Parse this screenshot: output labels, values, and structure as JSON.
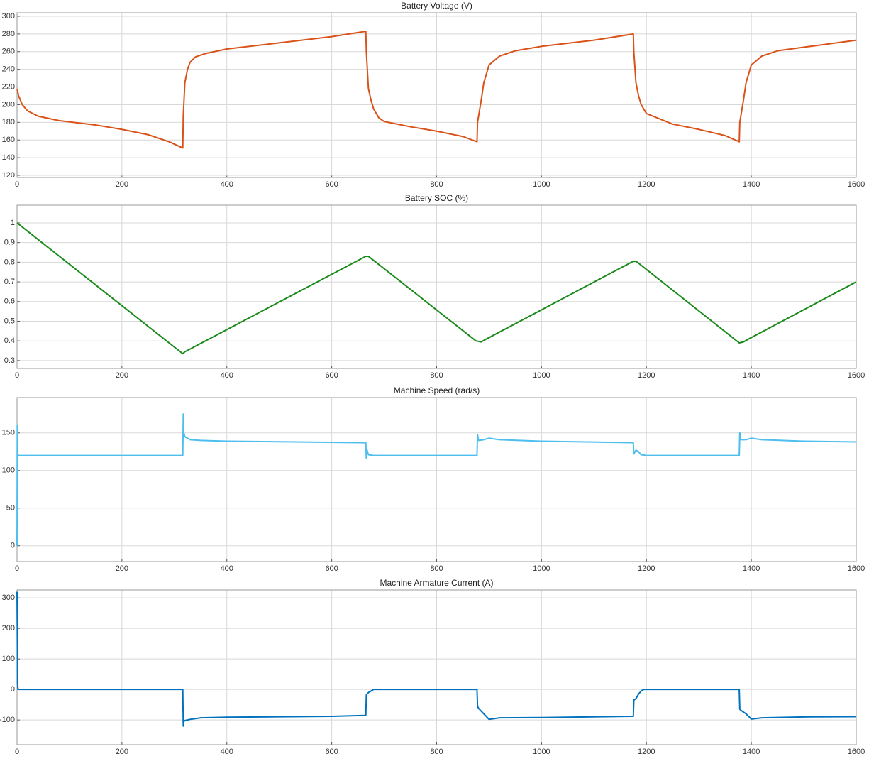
{
  "chart_data": [
    {
      "type": "line",
      "title": "Battery Voltage (V)",
      "grid": true,
      "xlim": [
        0,
        1600
      ],
      "xticks": [
        0,
        200,
        400,
        600,
        800,
        1000,
        1200,
        1400,
        1600
      ],
      "ylim": [
        117.6,
        304
      ],
      "yticks": [
        120,
        140,
        160,
        180,
        200,
        220,
        240,
        260,
        280,
        300
      ],
      "x": [
        0,
        3,
        10,
        20,
        40,
        80,
        150,
        200,
        250,
        290,
        316,
        317,
        320,
        325,
        330,
        340,
        360,
        400,
        500,
        600,
        665,
        666,
        670,
        675,
        680,
        690,
        700,
        750,
        800,
        850,
        877,
        878,
        885,
        890,
        900,
        920,
        950,
        1000,
        1100,
        1175,
        1176,
        1180,
        1185,
        1190,
        1200,
        1250,
        1300,
        1350,
        1377,
        1378,
        1385,
        1390,
        1400,
        1420,
        1450,
        1500,
        1600
      ],
      "series": [
        {
          "color": "#d95319",
          "values": [
            218,
            210,
            200,
            193,
            187,
            182,
            177,
            172,
            166,
            158,
            151,
            188,
            225,
            240,
            248,
            254,
            258,
            263,
            270,
            277,
            283,
            260,
            218,
            205,
            195,
            185,
            181,
            175,
            170,
            164,
            158,
            180,
            205,
            225,
            245,
            255,
            261,
            266,
            273,
            280,
            260,
            225,
            210,
            200,
            190,
            178,
            172,
            165,
            158,
            180,
            205,
            225,
            245,
            255,
            261,
            265,
            273
          ]
        }
      ]
    },
    {
      "type": "line",
      "title": "Battery SOC (%)",
      "grid": true,
      "xlim": [
        0,
        1600
      ],
      "xticks": [
        0,
        200,
        400,
        600,
        800,
        1000,
        1200,
        1400,
        1600
      ],
      "ylim": [
        0.26,
        1.09
      ],
      "yticks": [
        0.3,
        0.4,
        0.5,
        0.6,
        0.7,
        0.8,
        0.9,
        1
      ],
      "x": [
        0,
        316,
        320,
        665,
        670,
        875,
        885,
        895,
        1175,
        1180,
        1185,
        1377,
        1385,
        1395,
        1600
      ],
      "series": [
        {
          "color": "#1a8a1a",
          "values": [
            1,
            0.335,
            0.345,
            0.83,
            0.83,
            0.4,
            0.395,
            0.41,
            0.805,
            0.805,
            0.795,
            0.39,
            0.395,
            0.41,
            0.7
          ]
        }
      ]
    },
    {
      "type": "line",
      "title": "Machine Speed (rad/s)",
      "grid": true,
      "xlim": [
        0,
        1600
      ],
      "xticks": [
        0,
        200,
        400,
        600,
        800,
        1000,
        1200,
        1400,
        1600
      ],
      "ylim": [
        -21,
        197
      ],
      "yticks": [
        0,
        50,
        100,
        150
      ],
      "x": [
        0,
        0.5,
        1,
        2,
        5,
        50,
        316,
        317,
        318,
        320,
        330,
        350,
        400,
        665,
        666,
        667,
        670,
        680,
        700,
        800,
        877,
        878,
        880,
        890,
        895,
        900,
        920,
        1000,
        1175,
        1176,
        1180,
        1185,
        1190,
        1200,
        1300,
        1377,
        1378,
        1380,
        1390,
        1395,
        1400,
        1420,
        1500,
        1600
      ],
      "series": [
        {
          "color": "#4dbeee",
          "values": [
            0,
            160,
            125,
            120,
            120,
            120,
            120,
            175,
            150,
            145,
            141,
            140,
            139,
            137,
            116,
            128,
            121,
            120,
            120,
            120,
            120,
            148,
            140,
            141,
            142,
            143,
            141,
            139,
            137,
            122,
            127,
            125,
            121,
            120,
            120,
            120,
            150,
            141,
            141,
            142,
            143,
            141,
            139,
            138
          ]
        }
      ]
    },
    {
      "type": "line",
      "title": "Machine Armature Current (A)",
      "grid": true,
      "xlim": [
        0,
        1600
      ],
      "xticks": [
        0,
        200,
        400,
        600,
        800,
        1000,
        1200,
        1400,
        1600
      ],
      "ylim": [
        -181,
        326
      ],
      "yticks": [
        -100,
        0,
        100,
        200,
        300
      ],
      "x": [
        0,
        0.5,
        1,
        2,
        316,
        317,
        318,
        320,
        330,
        350,
        400,
        600,
        665,
        666,
        670,
        680,
        877,
        878,
        880,
        890,
        900,
        920,
        1000,
        1175,
        1176,
        1180,
        1185,
        1190,
        1195,
        1377,
        1378,
        1380,
        1390,
        1400,
        1420,
        1500,
        1600
      ],
      "series": [
        {
          "color": "#0072bd",
          "values": [
            320,
            200,
            20,
            0,
            0,
            -120,
            -105,
            -102,
            -98,
            -93,
            -91,
            -88,
            -85,
            -18,
            -10,
            0,
            0,
            -55,
            -62,
            -80,
            -98,
            -93,
            -92,
            -88,
            -35,
            -30,
            -15,
            -5,
            0,
            0,
            -65,
            -68,
            -80,
            -97,
            -93,
            -90,
            -89
          ]
        }
      ]
    }
  ]
}
